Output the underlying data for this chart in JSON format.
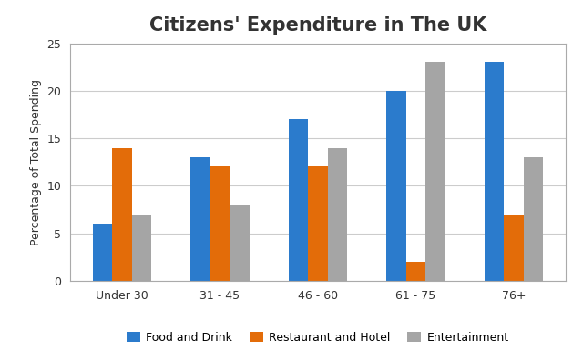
{
  "title": "Citizens' Expenditure in The UK",
  "ylabel": "Percentage of Total Spending",
  "categories": [
    "Under 30",
    "31 - 45",
    "46 - 60",
    "61 - 75",
    "76+"
  ],
  "series": [
    {
      "name": "Food and Drink",
      "color": "#2B7BCC",
      "values": [
        6,
        13,
        17,
        20,
        23
      ]
    },
    {
      "name": "Restaurant and Hotel",
      "color": "#E36C09",
      "values": [
        14,
        12,
        12,
        2,
        7
      ]
    },
    {
      "name": "Entertainment",
      "color": "#A5A5A5",
      "values": [
        7,
        8,
        14,
        23,
        13
      ]
    }
  ],
  "ylim": [
    0,
    25
  ],
  "yticks": [
    0,
    5,
    10,
    15,
    20,
    25
  ],
  "background_color": "#FFFFFF",
  "plot_background_color": "#FFFFFF",
  "title_fontsize": 15,
  "ylabel_fontsize": 9,
  "tick_fontsize": 9,
  "legend_fontsize": 9,
  "bar_width": 0.2,
  "grid_color": "#CCCCCC",
  "border_color": "#AAAAAA"
}
